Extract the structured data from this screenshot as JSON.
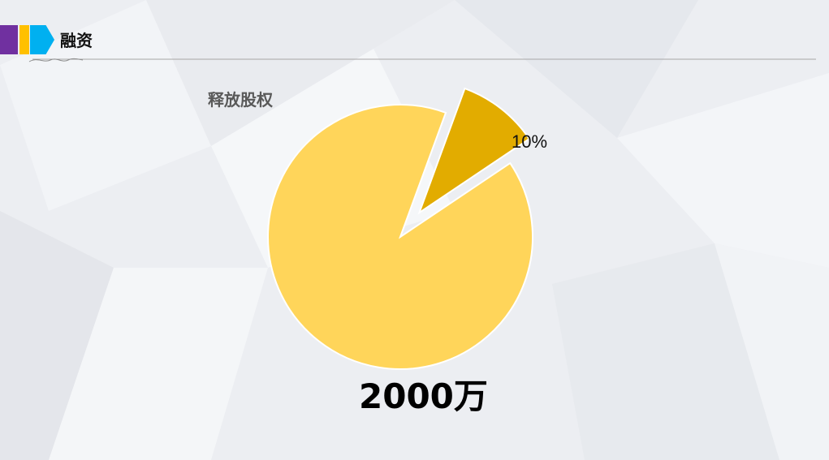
{
  "header": {
    "title": "融资"
  },
  "colors": {
    "accent_purple": "#7030a0",
    "accent_yellow": "#ffc000",
    "accent_blue": "#00b0f0",
    "slice_main": "#ffd55a",
    "slice_exploded": "#e2ac00"
  },
  "chart_data": {
    "type": "pie",
    "title": "释放股权",
    "slices": [
      {
        "label": "10%",
        "value": 10,
        "color": "#e2ac00",
        "exploded": true
      },
      {
        "value": 90,
        "color": "#ffd55a",
        "exploded": false
      }
    ],
    "annotation": "2000万"
  }
}
